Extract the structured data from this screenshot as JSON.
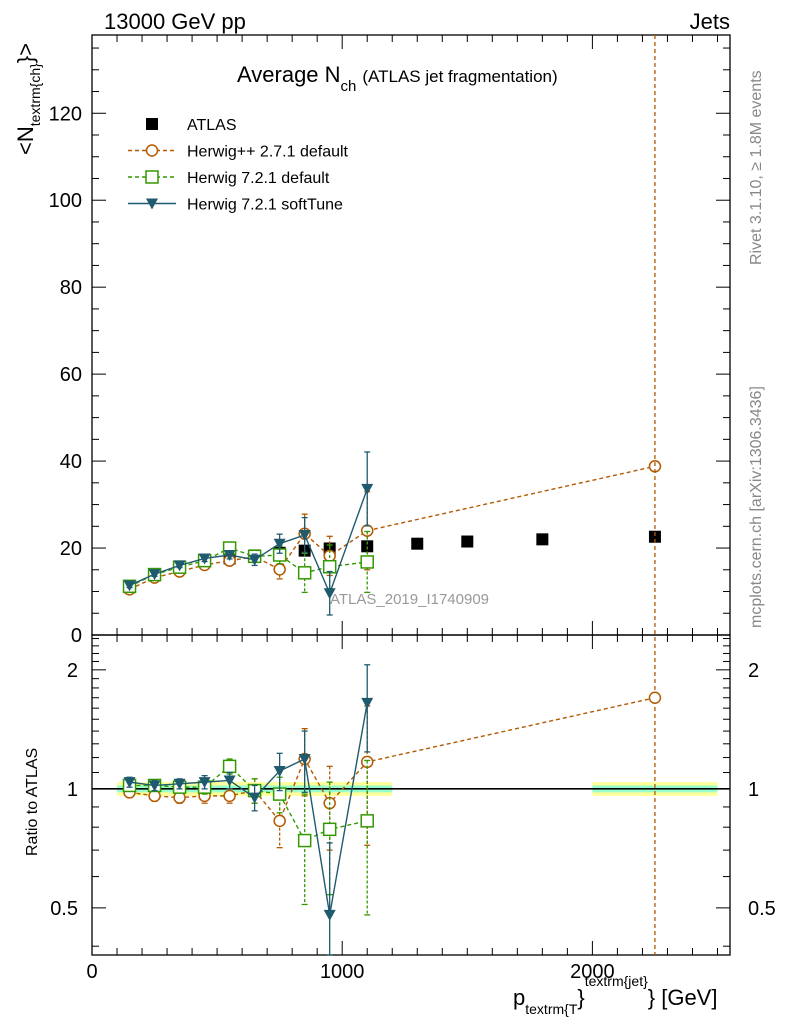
{
  "header": {
    "left": "13000 GeV pp",
    "right": "Jets"
  },
  "side_labels": {
    "top": "Rivet 3.1.10, ≥ 1.8M events",
    "bottom": "mcplots.cern.ch [arXiv:1306.3436]"
  },
  "title": {
    "main": "Average N",
    "sub": "ch",
    "suffix": "(ATLAS jet fragmentation)"
  },
  "ylabel": "<N",
  "ylabel_sub": "textrm{ch}",
  "ylabel_end": "}>",
  "ratio_ylabel": "Ratio to ATLAS",
  "xlabel": {
    "p": "p",
    "sub": "textrm{T",
    "brace": "}",
    "sup": "textrm{jet}",
    "unit": "} [GeV]"
  },
  "watermark": "ATLAS_2019_I1740909",
  "legend": [
    "ATLAS",
    "Herwig++ 2.7.1 default",
    "Herwig 7.2.1 default",
    "Herwig 7.2.1 softTune"
  ],
  "colors": {
    "atlas": "#000000",
    "herwigpp": "#b35900",
    "herwig_default": "#339900",
    "herwig_soft": "#1f5a6e",
    "band_inner": "#99ffcc",
    "band_outer": "#ffff99"
  },
  "chart_data": {
    "type": "scatter",
    "xlim": [
      0,
      2550
    ],
    "x_ticks": [
      "0",
      "1000",
      "2000"
    ],
    "main": {
      "ylim": [
        0,
        138
      ],
      "y_ticks": [
        "0",
        "20",
        "40",
        "60",
        "80",
        "100",
        "120"
      ],
      "series": [
        {
          "name": "ATLAS",
          "marker": "square-filled",
          "x": [
            150,
            250,
            350,
            450,
            550,
            650,
            750,
            850,
            950,
            1100,
            1300,
            1500,
            1800,
            2250
          ],
          "y": [
            11.0,
            13.7,
            15.5,
            16.9,
            17.6,
            18.3,
            18.9,
            19.4,
            19.9,
            20.4,
            21.0,
            21.5,
            22.0,
            22.6
          ]
        },
        {
          "name": "Herwig++ 2.7.1 default",
          "marker": "circle-open",
          "x": [
            150,
            250,
            350,
            450,
            550,
            650,
            750,
            850,
            950,
            1100,
            2250
          ],
          "y": [
            10.5,
            13.2,
            14.6,
            16.1,
            17.1,
            18.0,
            15.1,
            23.3,
            18.2,
            24.0,
            38.8
          ],
          "err": [
            0.5,
            0.5,
            0.5,
            0.7,
            0.8,
            1.2,
            2.2,
            4.5,
            4.5,
            9.0,
            0
          ]
        },
        {
          "name": "Herwig 7.2.1 default",
          "marker": "square-open",
          "x": [
            150,
            250,
            350,
            450,
            550,
            650,
            750,
            850,
            950,
            1100
          ],
          "y": [
            11.2,
            13.9,
            15.6,
            17.1,
            20.0,
            18.1,
            18.4,
            14.3,
            15.7,
            16.8
          ],
          "err": [
            0.5,
            0.5,
            0.5,
            0.6,
            0.9,
            1.2,
            2.0,
            4.5,
            5.0,
            7.0
          ]
        },
        {
          "name": "Herwig 7.2.1 softTune",
          "marker": "triangle-down-filled",
          "x": [
            150,
            250,
            350,
            450,
            550,
            650,
            750,
            850,
            950,
            1100
          ],
          "y": [
            11.4,
            14.0,
            16.0,
            17.6,
            18.4,
            17.3,
            21.0,
            23.0,
            9.6,
            33.6
          ],
          "err": [
            0.5,
            0.5,
            0.5,
            0.7,
            0.9,
            1.3,
            2.2,
            4.0,
            5.0,
            8.5
          ]
        }
      ]
    },
    "ratio": {
      "ylim": [
        0.38,
        2.45
      ],
      "y_scale": "log",
      "y_ticks": [
        "0.5",
        "1",
        "2"
      ],
      "series": [
        {
          "name": "Herwig++ 2.7.1 default",
          "x": [
            150,
            250,
            350,
            450,
            550,
            650,
            750,
            850,
            950,
            1100,
            2250
          ],
          "y": [
            0.98,
            0.96,
            0.95,
            0.96,
            0.96,
            0.99,
            0.83,
            1.19,
            0.92,
            1.17,
            1.7
          ],
          "err": [
            0.03,
            0.03,
            0.03,
            0.04,
            0.04,
            0.07,
            0.12,
            0.23,
            0.22,
            0.45,
            0
          ]
        },
        {
          "name": "Herwig 7.2.1 default",
          "x": [
            150,
            250,
            350,
            450,
            550,
            650,
            750,
            850,
            950,
            1100
          ],
          "y": [
            1.02,
            1.02,
            1.01,
            1.01,
            1.14,
            0.99,
            0.97,
            0.74,
            0.79,
            0.83
          ],
          "err": [
            0.03,
            0.03,
            0.03,
            0.04,
            0.05,
            0.07,
            0.1,
            0.23,
            0.25,
            0.35
          ]
        },
        {
          "name": "Herwig 7.2.1 softTune",
          "x": [
            150,
            250,
            350,
            450,
            550,
            650,
            750,
            850,
            950,
            1100
          ],
          "y": [
            1.04,
            1.02,
            1.03,
            1.04,
            1.05,
            0.95,
            1.11,
            1.19,
            0.48,
            1.65
          ],
          "err": [
            0.03,
            0.03,
            0.03,
            0.04,
            0.05,
            0.07,
            0.12,
            0.21,
            0.25,
            0.41
          ]
        }
      ],
      "band": {
        "segments": [
          {
            "x0": 100,
            "x1": 1200,
            "inner": 0.02,
            "outer": 0.04
          },
          {
            "x0": 2000,
            "x1": 2500,
            "inner": 0.02,
            "outer": 0.04
          }
        ]
      }
    }
  }
}
